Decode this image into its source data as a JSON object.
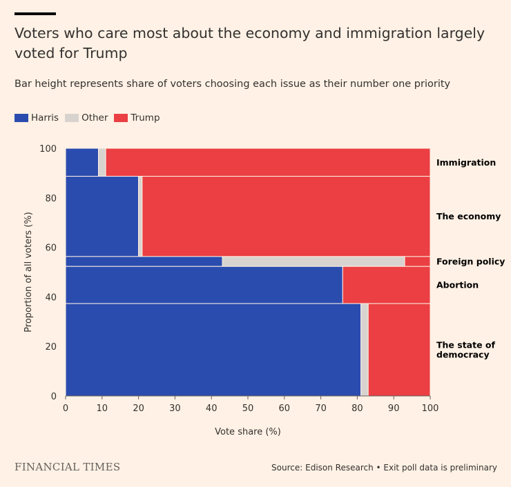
{
  "header": {
    "title": "Voters who care most about the economy and immigration largely voted for Trump",
    "subtitle": "Bar height represents share of voters choosing each issue as their number one priority"
  },
  "legend": [
    {
      "label": "Harris",
      "color": "#2B4CAF"
    },
    {
      "label": "Other",
      "color": "#D8D3CF"
    },
    {
      "label": "Trump",
      "color": "#EB3F43"
    }
  ],
  "footer": {
    "logo": "FINANCIAL TIMES",
    "source": "Source: Edison Research • Exit poll data is preliminary"
  },
  "chart_data": {
    "type": "bar",
    "subtype": "marimekko",
    "xlabel": "Vote share (%)",
    "ylabel": "Proportion of all voters (%)",
    "xlim": [
      0,
      100
    ],
    "ylim": [
      0,
      100
    ],
    "x_ticks": [
      "0",
      "10",
      "20",
      "30",
      "40",
      "50",
      "60",
      "70",
      "80",
      "90",
      "100"
    ],
    "y_ticks": [
      "0",
      "20",
      "40",
      "60",
      "80",
      "100"
    ],
    "series_names": [
      "Harris",
      "Other",
      "Trump"
    ],
    "categories": [
      {
        "label_lines": [
          "Immigration"
        ],
        "y_start": 88.7,
        "y_end": 100,
        "harris": 9,
        "other": 2,
        "trump": 89
      },
      {
        "label_lines": [
          "The economy"
        ],
        "y_start": 56.3,
        "y_end": 88.7,
        "harris": 20,
        "other": 1,
        "trump": 79
      },
      {
        "label_lines": [
          "Foreign policy"
        ],
        "y_start": 52.3,
        "y_end": 56.3,
        "harris": 43,
        "other": 50,
        "trump": 7
      },
      {
        "label_lines": [
          "Abortion"
        ],
        "y_start": 37.3,
        "y_end": 52.3,
        "harris": 76,
        "other": 0,
        "trump": 24
      },
      {
        "label_lines": [
          "The state of",
          "democracy"
        ],
        "y_start": 0,
        "y_end": 37.3,
        "harris": 81,
        "other": 2,
        "trump": 17
      }
    ],
    "grid": false
  }
}
